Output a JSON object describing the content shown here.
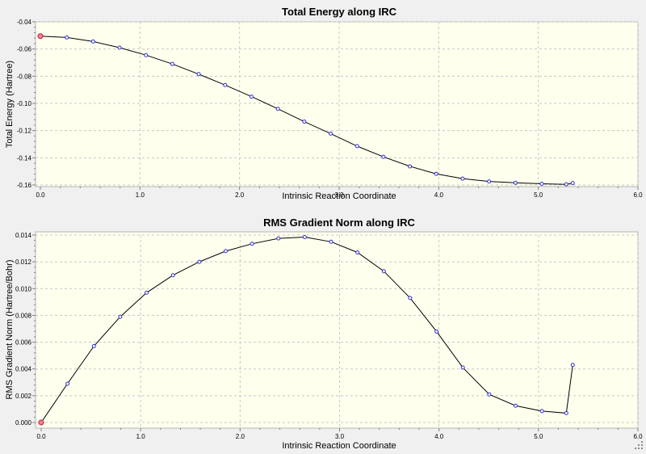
{
  "chart_data": [
    {
      "type": "line",
      "title": "Total Energy along IRC",
      "xlabel": "Intrinsic Reaction Coordinate",
      "ylabel": "Total Energy (Hartree)",
      "xlim": [
        0.0,
        6.0
      ],
      "ylim": [
        -0.16,
        -0.04
      ],
      "xticks": [
        "0.0",
        "1.0",
        "2.0",
        "3.0",
        "4.0",
        "5.0",
        "6.0"
      ],
      "yticks": [
        "-0.16",
        "-0.14",
        "-0.12",
        "-0.10",
        "-0.08",
        "-0.06",
        "-0.04"
      ],
      "grid": true,
      "highlighted_index": 0,
      "series": [
        {
          "x": [
            0.0,
            0.265,
            0.53,
            0.795,
            1.06,
            1.325,
            1.59,
            1.855,
            2.12,
            2.385,
            2.65,
            2.915,
            3.18,
            3.445,
            3.71,
            3.975,
            4.24,
            4.505,
            4.77,
            5.035,
            5.28,
            5.345
          ],
          "y": [
            -0.0505,
            -0.0515,
            -0.0545,
            -0.059,
            -0.0645,
            -0.071,
            -0.0785,
            -0.0865,
            -0.095,
            -0.104,
            -0.1134,
            -0.1222,
            -0.1314,
            -0.1393,
            -0.1463,
            -0.1518,
            -0.1553,
            -0.1574,
            -0.1584,
            -0.1591,
            -0.1595,
            -0.1586
          ]
        }
      ]
    },
    {
      "type": "line",
      "title": "RMS Gradient Norm along IRC",
      "xlabel": "Intrinsic Reaction Coordinate",
      "ylabel": "RMS Gradient Norm (Hartree/Bohr)",
      "xlim": [
        0.0,
        6.0
      ],
      "ylim": [
        0.0,
        0.014
      ],
      "xticks": [
        "0.0",
        "1.0",
        "2.0",
        "3.0",
        "4.0",
        "5.0",
        "6.0"
      ],
      "yticks": [
        "0.000",
        "0.002",
        "0.004",
        "0.006",
        "0.008",
        "0.010",
        "0.012",
        "0.014"
      ],
      "grid": true,
      "highlighted_index": 0,
      "series": [
        {
          "x": [
            0.0,
            0.265,
            0.53,
            0.795,
            1.06,
            1.325,
            1.59,
            1.855,
            2.12,
            2.385,
            2.65,
            2.915,
            3.18,
            3.445,
            3.71,
            3.975,
            4.24,
            4.505,
            4.77,
            5.035,
            5.28,
            5.345
          ],
          "y": [
            0.0,
            0.0029,
            0.0057,
            0.0079,
            0.0097,
            0.011,
            0.012,
            0.0128,
            0.01335,
            0.01375,
            0.01385,
            0.0135,
            0.0127,
            0.0113,
            0.0093,
            0.0068,
            0.0041,
            0.0021,
            0.00125,
            0.00085,
            0.0007,
            0.0043
          ]
        }
      ]
    }
  ]
}
